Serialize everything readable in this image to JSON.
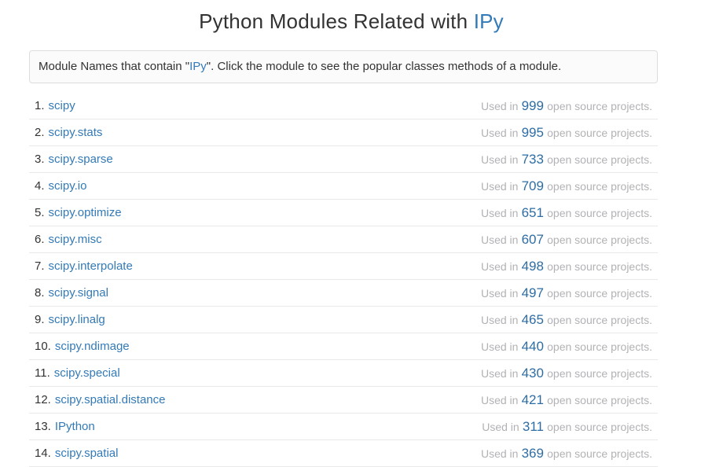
{
  "title": {
    "prefix": "Python Modules Related with ",
    "keyword": "IPy"
  },
  "info_box": {
    "text_before": "Module Names that contain \"",
    "keyword": "IPy",
    "text_after": "\". Click the module to see the popular classes methods of a module."
  },
  "list": {
    "used_in_prefix": "Used in",
    "used_in_suffix": "open source projects.",
    "items": [
      {
        "rank": "1.",
        "module": "scipy",
        "count": "999"
      },
      {
        "rank": "2.",
        "module": "scipy.stats",
        "count": "995"
      },
      {
        "rank": "3.",
        "module": "scipy.sparse",
        "count": "733"
      },
      {
        "rank": "4.",
        "module": "scipy.io",
        "count": "709"
      },
      {
        "rank": "5.",
        "module": "scipy.optimize",
        "count": "651"
      },
      {
        "rank": "6.",
        "module": "scipy.misc",
        "count": "607"
      },
      {
        "rank": "7.",
        "module": "scipy.interpolate",
        "count": "498"
      },
      {
        "rank": "8.",
        "module": "scipy.signal",
        "count": "497"
      },
      {
        "rank": "9.",
        "module": "scipy.linalg",
        "count": "465"
      },
      {
        "rank": "10.",
        "module": "scipy.ndimage",
        "count": "440"
      },
      {
        "rank": "11.",
        "module": "scipy.special",
        "count": "430"
      },
      {
        "rank": "12.",
        "module": "scipy.spatial.distance",
        "count": "421"
      },
      {
        "rank": "13.",
        "module": "IPython",
        "count": "311"
      },
      {
        "rank": "14.",
        "module": "scipy.spatial",
        "count": "369"
      }
    ]
  },
  "colors": {
    "link_blue": "#337ab7",
    "count_blue": "#2e6da4",
    "muted_gray": "#b2b2b6",
    "text_dark": "#333333",
    "box_border": "#dddddd",
    "row_border": "#e9e9e9",
    "box_bg": "#fbfbfc"
  }
}
